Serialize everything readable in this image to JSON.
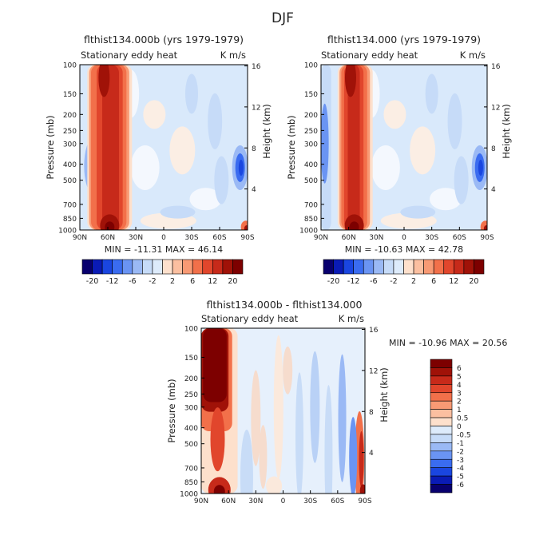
{
  "figure_title": "DJF",
  "panels": {
    "a": {
      "title": "flthist134.000b (yrs 1979-1979)",
      "field_label": "Stationary eddy heat",
      "units_label": "K m/s",
      "min_max": "MIN = -11.31   MAX =  46.14"
    },
    "b": {
      "title": "flthist134.000 (yrs 1979-1979)",
      "field_label": "Stationary eddy heat",
      "units_label": "K m/s",
      "min_max": "MIN = -10.63   MAX =  42.78"
    },
    "c": {
      "title": "flthist134.000b - flthist134.000",
      "field_label": "Stationary eddy heat",
      "units_label": "K m/s",
      "min_max": "MIN = -10.96   MAX =  20.56"
    }
  },
  "axes": {
    "pressure_label": "Pressure (mb)",
    "height_label": "Height (km)",
    "pressure_ticks": [
      "100",
      "150",
      "200",
      "250",
      "300",
      "400",
      "500",
      "700",
      "850",
      "1000"
    ],
    "height_ticks": [
      "16",
      "12",
      "8",
      "4"
    ],
    "lat_ticks": [
      "90N",
      "60N",
      "30N",
      "0",
      "30S",
      "60S",
      "90S"
    ]
  },
  "colorbars": {
    "horizontal_labels": [
      "-20",
      "-12",
      "-6",
      "-2",
      "2",
      "6",
      "12",
      "20"
    ],
    "vertical_labels": [
      "6",
      "5",
      "4",
      "3",
      "2",
      "1",
      "0.5",
      "0",
      "-0.5",
      "-1",
      "-2",
      "-3",
      "-4",
      "-5",
      "-6"
    ]
  },
  "colors": {
    "blue_ramp": [
      "#08006e",
      "#0a1bb5",
      "#1a46e0",
      "#3a6cf0",
      "#6a94f3",
      "#9ab9f5",
      "#c6dbf8",
      "#ddebfb"
    ],
    "red_ramp": [
      "#fde0cc",
      "#fbbfa0",
      "#f89a74",
      "#f2704a",
      "#e1462c",
      "#c72a1a",
      "#a01208",
      "#7d0000"
    ],
    "diverging_vertical": [
      "#7d0000",
      "#a01208",
      "#c72a1a",
      "#e1462c",
      "#f2704a",
      "#f89a74",
      "#fbbfa0",
      "#fde0cc",
      "#ddebfb",
      "#c6dbf8",
      "#9ab9f5",
      "#6a94f3",
      "#3a6cf0",
      "#1a46e0",
      "#0a1bb5",
      "#08006e"
    ]
  },
  "chart_data": [
    {
      "type": "heatmap",
      "title": "flthist134.000b (yrs 1979-1979)",
      "field": "Stationary eddy heat",
      "units": "K m/s",
      "season": "DJF",
      "x": {
        "label": "latitude",
        "ticks": [
          "90N",
          "60N",
          "30N",
          "0",
          "30S",
          "60S",
          "90S"
        ],
        "range": [
          90,
          -90
        ]
      },
      "y": {
        "label": "Pressure (mb)",
        "ticks": [
          100,
          150,
          200,
          250,
          300,
          400,
          500,
          700,
          850,
          1000
        ],
        "range": [
          100,
          1000
        ]
      },
      "y2": {
        "label": "Height (km)",
        "ticks": [
          16,
          12,
          8,
          4
        ]
      },
      "contour_levels": [
        -20,
        -16,
        -12,
        -9,
        -6,
        -4,
        -2,
        -1,
        1,
        2,
        4,
        6,
        9,
        12,
        16,
        20
      ],
      "min": -11.31,
      "max": 46.14,
      "features": [
        {
          "desc": "strong positive heat flux column",
          "lat_range": [
            75,
            40
          ],
          "p_range": [
            100,
            1000
          ],
          "value": 20
        },
        {
          "desc": "negative center",
          "lat": 75,
          "p": 400,
          "value": -8
        },
        {
          "desc": "negative center near south pole",
          "lat": -82,
          "p": 400,
          "value": -8
        },
        {
          "desc": "positive near south pole surface",
          "lat": -88,
          "p": 950,
          "value": 15
        }
      ]
    },
    {
      "type": "heatmap",
      "title": "flthist134.000 (yrs 1979-1979)",
      "field": "Stationary eddy heat",
      "units": "K m/s",
      "season": "DJF",
      "x": {
        "label": "latitude",
        "ticks": [
          "90N",
          "60N",
          "30N",
          "0",
          "30S",
          "60S",
          "90S"
        ],
        "range": [
          90,
          -90
        ]
      },
      "y": {
        "label": "Pressure (mb)",
        "ticks": [
          100,
          150,
          200,
          250,
          300,
          400,
          500,
          700,
          850,
          1000
        ],
        "range": [
          100,
          1000
        ]
      },
      "y2": {
        "label": "Height (km)",
        "ticks": [
          16,
          12,
          8,
          4
        ]
      },
      "contour_levels": [
        -20,
        -16,
        -12,
        -9,
        -6,
        -4,
        -2,
        -1,
        1,
        2,
        4,
        6,
        9,
        12,
        16,
        20
      ],
      "min": -10.63,
      "max": 42.78,
      "features": [
        {
          "desc": "strong positive heat flux column",
          "lat_range": [
            70,
            40
          ],
          "p_range": [
            100,
            1000
          ],
          "value": 20
        },
        {
          "desc": "negative column",
          "lat": 85,
          "p": 300,
          "value": -6
        },
        {
          "desc": "negative center near south pole",
          "lat": -82,
          "p": 400,
          "value": -10
        }
      ]
    },
    {
      "type": "heatmap",
      "title": "flthist134.000b - flthist134.000",
      "field": "Stationary eddy heat",
      "units": "K m/s",
      "season": "DJF",
      "x": {
        "label": "latitude",
        "ticks": [
          "90N",
          "60N",
          "30N",
          "0",
          "30S",
          "60S",
          "90S"
        ],
        "range": [
          90,
          -90
        ]
      },
      "y": {
        "label": "Pressure (mb)",
        "ticks": [
          100,
          150,
          200,
          250,
          300,
          400,
          500,
          700,
          850,
          1000
        ],
        "range": [
          100,
          1000
        ]
      },
      "y2": {
        "label": "Height (km)",
        "ticks": [
          16,
          12,
          8,
          4
        ]
      },
      "contour_levels": [
        -6,
        -5,
        -4,
        -3,
        -2,
        -1,
        -0.5,
        0,
        0.5,
        1,
        2,
        3,
        4,
        5,
        6
      ],
      "min": -10.96,
      "max": 20.56,
      "features": [
        {
          "desc": "large positive difference upper troposphere",
          "lat_range": [
            90,
            60
          ],
          "p_range": [
            100,
            300
          ],
          "value": 6
        },
        {
          "desc": "positive difference near south pole",
          "lat": -85,
          "p": 600,
          "value": 3
        }
      ]
    }
  ]
}
